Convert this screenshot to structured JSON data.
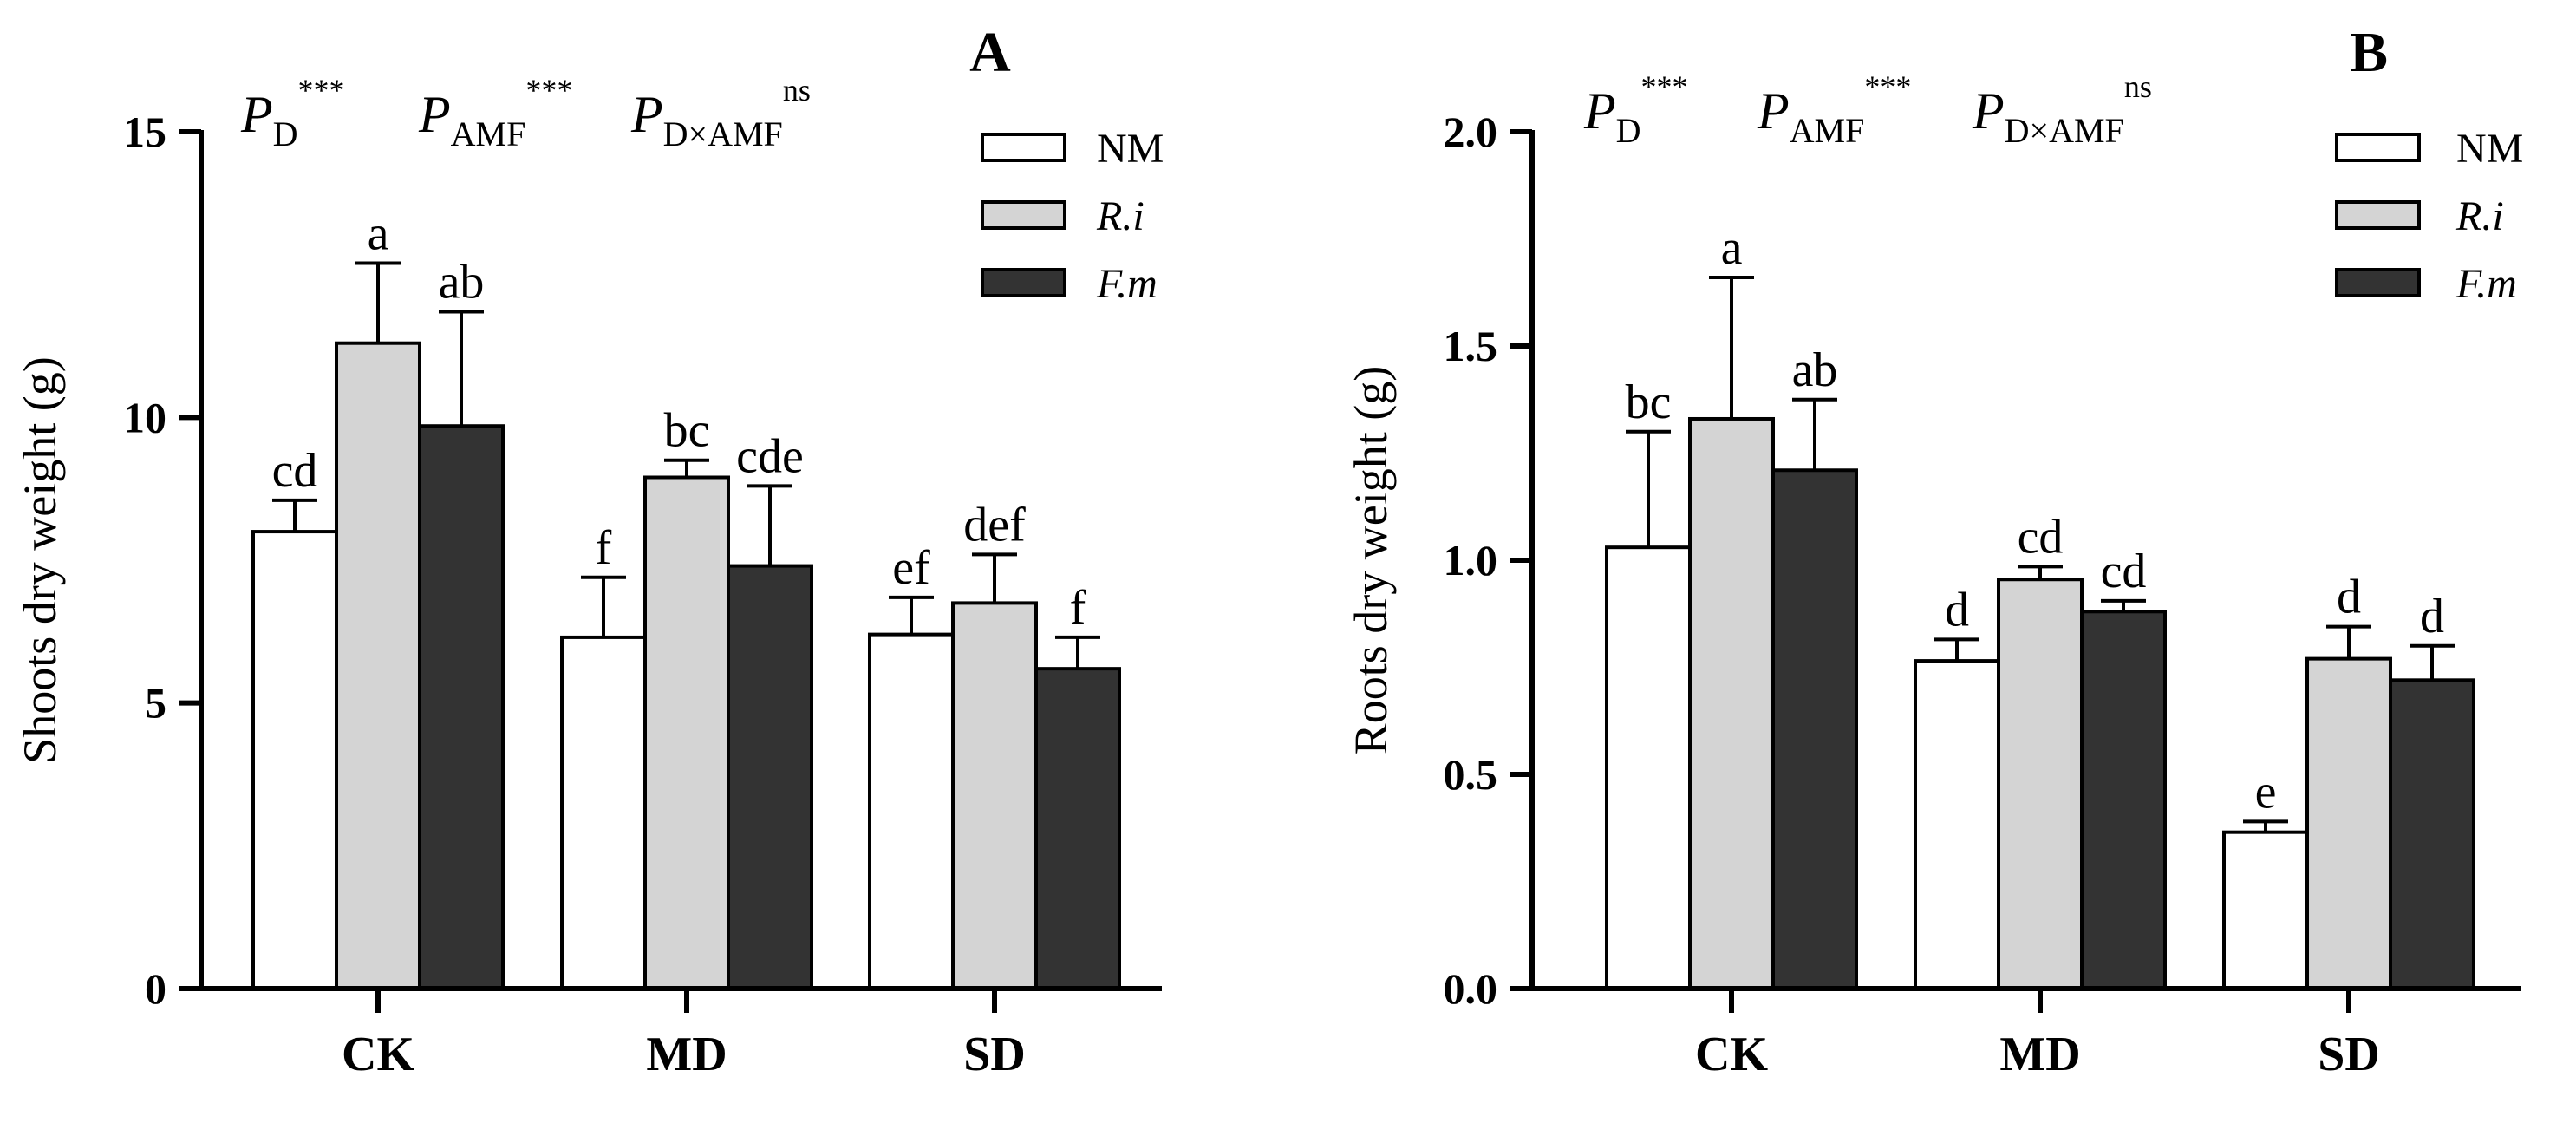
{
  "chart_data": [
    {
      "type": "bar",
      "panel_label": "A",
      "title": "",
      "xlabel": "",
      "ylabel": "Shoots dry weight (g)",
      "ylim": [
        0,
        15
      ],
      "yticks": [
        "0",
        "5",
        "10",
        "15"
      ],
      "ytick_values": [
        0,
        5,
        10,
        15
      ],
      "categories": [
        "CK",
        "MD",
        "SD"
      ],
      "series": [
        {
          "name": "NM",
          "italic": false,
          "color": "#ffffff",
          "values": [
            8.0,
            6.15,
            6.2
          ],
          "errors": [
            0.55,
            1.05,
            0.65
          ],
          "letters": [
            "cd",
            "f",
            "ef"
          ]
        },
        {
          "name": "R.i",
          "italic": true,
          "color": "#d4d4d4",
          "values": [
            11.3,
            8.95,
            6.75
          ],
          "errors": [
            1.4,
            0.3,
            0.85
          ],
          "letters": [
            "a",
            "bc",
            "def"
          ]
        },
        {
          "name": "F.m",
          "italic": true,
          "color": "#333333",
          "values": [
            9.85,
            7.4,
            5.6
          ],
          "errors": [
            2.0,
            1.4,
            0.55
          ],
          "letters": [
            "ab",
            "cde",
            "f"
          ]
        }
      ],
      "legend_position": "top-right",
      "grid": false,
      "stats": [
        {
          "main": "P",
          "sub": "D",
          "sup": "***"
        },
        {
          "main": "P",
          "sub": "AMF",
          "sup": "***"
        },
        {
          "main": "P",
          "sub": "D×AMF",
          "sup": "ns"
        }
      ]
    },
    {
      "type": "bar",
      "panel_label": "B",
      "title": "",
      "xlabel": "",
      "ylabel": "Roots dry weight (g)",
      "ylim": [
        0,
        2.0
      ],
      "yticks": [
        "0.0",
        "0.5",
        "1.0",
        "1.5",
        "2.0"
      ],
      "ytick_values": [
        0,
        0.5,
        1.0,
        1.5,
        2.0
      ],
      "categories": [
        "CK",
        "MD",
        "SD"
      ],
      "series": [
        {
          "name": "NM",
          "italic": false,
          "color": "#ffffff",
          "values": [
            1.03,
            0.765,
            0.365
          ],
          "errors": [
            0.27,
            0.05,
            0.025
          ],
          "letters": [
            "bc",
            "d",
            "e"
          ]
        },
        {
          "name": "R.i",
          "italic": true,
          "color": "#d4d4d4",
          "values": [
            1.33,
            0.955,
            0.77
          ],
          "errors": [
            0.33,
            0.03,
            0.075
          ],
          "letters": [
            "a",
            "cd",
            "d"
          ]
        },
        {
          "name": "F.m",
          "italic": true,
          "color": "#333333",
          "values": [
            1.21,
            0.88,
            0.72
          ],
          "errors": [
            0.165,
            0.025,
            0.08
          ],
          "letters": [
            "ab",
            "cd",
            "d"
          ]
        }
      ],
      "legend_position": "top-right",
      "grid": false,
      "stats": [
        {
          "main": "P",
          "sub": "D",
          "sup": "***"
        },
        {
          "main": "P",
          "sub": "AMF",
          "sup": "***"
        },
        {
          "main": "P",
          "sub": "D×AMF",
          "sup": "ns"
        }
      ]
    }
  ]
}
